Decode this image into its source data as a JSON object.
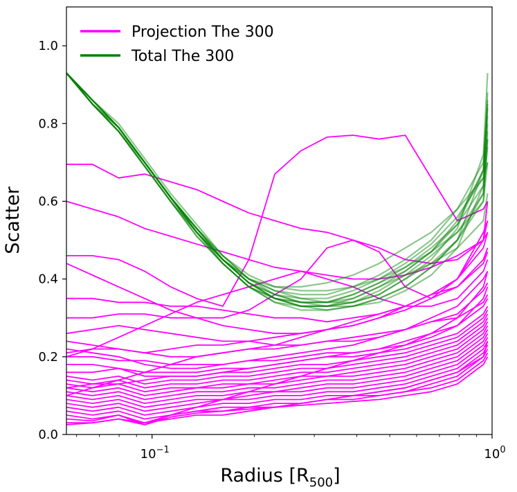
{
  "chart_data": {
    "type": "line",
    "xscale": "log",
    "xlim": [
      0.056,
      1.0
    ],
    "ylim": [
      0.0,
      1.1
    ],
    "xlabel": "Radius [R",
    "xlabel_sub": "500",
    "xlabel_close": "]",
    "ylabel": "Scatter",
    "x_ticks": [
      {
        "value": 0.1,
        "base": "10",
        "exp": "−1"
      },
      {
        "value": 1.0,
        "base": "10",
        "exp": "0"
      }
    ],
    "y_ticks": [
      {
        "value": 0.0,
        "label": "0.0"
      },
      {
        "value": 0.2,
        "label": "0.2"
      },
      {
        "value": 0.4,
        "label": "0.4"
      },
      {
        "value": 0.6,
        "label": "0.6"
      },
      {
        "value": 0.8,
        "label": "0.8"
      },
      {
        "value": 1.0,
        "label": "1.0"
      }
    ],
    "legend": {
      "position": "top-left",
      "entries": [
        {
          "label": "Projection The 300",
          "color": "#ff00ff"
        },
        {
          "label": "Total The 300",
          "color": "#008000"
        }
      ]
    },
    "colors": {
      "projection": "#ff00ff",
      "total": "#008000"
    },
    "x": [
      0.056,
      0.0668,
      0.0797,
      0.0951,
      0.1134,
      0.1353,
      0.1614,
      0.1926,
      0.2297,
      0.2741,
      0.327,
      0.3901,
      0.4654,
      0.5552,
      0.6623,
      0.7902,
      0.9427,
      0.97
    ],
    "projection_series": [
      {
        "name": "projection-1",
        "values": [
          0.695,
          0.695,
          0.66,
          0.67,
          0.65,
          0.63,
          0.6,
          0.57,
          0.55,
          0.53,
          0.52,
          0.5,
          0.48,
          0.45,
          0.44,
          0.45,
          0.5,
          0.55
        ]
      },
      {
        "name": "projection-2",
        "values": [
          0.6,
          0.58,
          0.56,
          0.53,
          0.51,
          0.49,
          0.47,
          0.45,
          0.43,
          0.42,
          0.41,
          0.4,
          0.4,
          0.41,
          0.43,
          0.46,
          0.5,
          0.6
        ]
      },
      {
        "name": "projection-3",
        "values": [
          0.46,
          0.46,
          0.45,
          0.42,
          0.38,
          0.35,
          0.33,
          0.45,
          0.67,
          0.73,
          0.765,
          0.77,
          0.76,
          0.77,
          0.66,
          0.55,
          0.58,
          0.6
        ]
      },
      {
        "name": "projection-4",
        "values": [
          0.44,
          0.41,
          0.38,
          0.35,
          0.32,
          0.3,
          0.28,
          0.27,
          0.26,
          0.26,
          0.27,
          0.28,
          0.3,
          0.33,
          0.36,
          0.38,
          0.45,
          0.48
        ]
      },
      {
        "name": "projection-5",
        "values": [
          0.35,
          0.35,
          0.34,
          0.34,
          0.33,
          0.33,
          0.32,
          0.31,
          0.3,
          0.3,
          0.29,
          0.3,
          0.31,
          0.33,
          0.36,
          0.4,
          0.5,
          0.52
        ]
      },
      {
        "name": "projection-6",
        "values": [
          0.3,
          0.3,
          0.31,
          0.31,
          0.3,
          0.3,
          0.3,
          0.32,
          0.36,
          0.4,
          0.48,
          0.5,
          0.47,
          0.38,
          0.35,
          0.4,
          0.52,
          0.55
        ]
      },
      {
        "name": "projection-7",
        "values": [
          0.2,
          0.22,
          0.25,
          0.28,
          0.31,
          0.34,
          0.36,
          0.38,
          0.4,
          0.42,
          0.4,
          0.38,
          0.35,
          0.33,
          0.33,
          0.35,
          0.42,
          0.45
        ]
      },
      {
        "name": "projection-8",
        "values": [
          0.26,
          0.27,
          0.28,
          0.27,
          0.26,
          0.25,
          0.24,
          0.24,
          0.23,
          0.23,
          0.24,
          0.24,
          0.25,
          0.27,
          0.3,
          0.33,
          0.4,
          0.42
        ]
      },
      {
        "name": "projection-9",
        "values": [
          0.24,
          0.23,
          0.22,
          0.21,
          0.2,
          0.2,
          0.21,
          0.22,
          0.22,
          0.23,
          0.24,
          0.25,
          0.26,
          0.27,
          0.29,
          0.3,
          0.34,
          0.36
        ]
      },
      {
        "name": "projection-10",
        "values": [
          0.22,
          0.21,
          0.2,
          0.18,
          0.17,
          0.17,
          0.18,
          0.19,
          0.2,
          0.21,
          0.22,
          0.23,
          0.25,
          0.27,
          0.29,
          0.31,
          0.37,
          0.39
        ]
      },
      {
        "name": "projection-11",
        "values": [
          0.2,
          0.2,
          0.19,
          0.19,
          0.18,
          0.18,
          0.18,
          0.19,
          0.19,
          0.2,
          0.21,
          0.21,
          0.22,
          0.23,
          0.25,
          0.28,
          0.33,
          0.35
        ]
      },
      {
        "name": "projection-12",
        "values": [
          0.18,
          0.18,
          0.17,
          0.16,
          0.16,
          0.16,
          0.17,
          0.17,
          0.18,
          0.19,
          0.2,
          0.2,
          0.21,
          0.22,
          0.24,
          0.26,
          0.31,
          0.33
        ]
      },
      {
        "name": "projection-13",
        "values": [
          0.16,
          0.16,
          0.17,
          0.15,
          0.15,
          0.15,
          0.16,
          0.16,
          0.17,
          0.18,
          0.18,
          0.19,
          0.2,
          0.21,
          0.23,
          0.25,
          0.3,
          0.32
        ]
      },
      {
        "name": "projection-14",
        "values": [
          0.15,
          0.14,
          0.15,
          0.13,
          0.14,
          0.14,
          0.15,
          0.15,
          0.16,
          0.17,
          0.17,
          0.18,
          0.19,
          0.2,
          0.22,
          0.24,
          0.29,
          0.31
        ]
      },
      {
        "name": "projection-15",
        "values": [
          0.14,
          0.13,
          0.14,
          0.12,
          0.13,
          0.13,
          0.14,
          0.14,
          0.15,
          0.16,
          0.16,
          0.17,
          0.18,
          0.19,
          0.21,
          0.23,
          0.28,
          0.3
        ]
      },
      {
        "name": "projection-16",
        "values": [
          0.13,
          0.12,
          0.13,
          0.11,
          0.12,
          0.12,
          0.13,
          0.13,
          0.14,
          0.15,
          0.15,
          0.16,
          0.17,
          0.18,
          0.2,
          0.22,
          0.27,
          0.29
        ]
      },
      {
        "name": "projection-17",
        "values": [
          0.12,
          0.11,
          0.12,
          0.1,
          0.11,
          0.12,
          0.12,
          0.13,
          0.13,
          0.14,
          0.15,
          0.15,
          0.16,
          0.17,
          0.19,
          0.21,
          0.26,
          0.28
        ]
      },
      {
        "name": "projection-18",
        "values": [
          0.11,
          0.1,
          0.11,
          0.09,
          0.1,
          0.11,
          0.11,
          0.12,
          0.12,
          0.13,
          0.14,
          0.14,
          0.15,
          0.16,
          0.18,
          0.2,
          0.25,
          0.27
        ]
      },
      {
        "name": "projection-19",
        "values": [
          0.1,
          0.09,
          0.1,
          0.08,
          0.09,
          0.1,
          0.1,
          0.11,
          0.11,
          0.12,
          0.13,
          0.13,
          0.14,
          0.15,
          0.17,
          0.19,
          0.24,
          0.26
        ]
      },
      {
        "name": "projection-20",
        "values": [
          0.09,
          0.08,
          0.09,
          0.07,
          0.08,
          0.09,
          0.09,
          0.1,
          0.11,
          0.11,
          0.12,
          0.12,
          0.13,
          0.14,
          0.16,
          0.18,
          0.23,
          0.25
        ]
      },
      {
        "name": "projection-21",
        "values": [
          0.08,
          0.07,
          0.08,
          0.06,
          0.07,
          0.08,
          0.09,
          0.09,
          0.1,
          0.1,
          0.11,
          0.11,
          0.12,
          0.13,
          0.15,
          0.17,
          0.22,
          0.24
        ]
      },
      {
        "name": "projection-22",
        "values": [
          0.07,
          0.06,
          0.07,
          0.05,
          0.06,
          0.07,
          0.08,
          0.08,
          0.09,
          0.09,
          0.1,
          0.1,
          0.11,
          0.12,
          0.14,
          0.16,
          0.21,
          0.23
        ]
      },
      {
        "name": "projection-23",
        "values": [
          0.06,
          0.05,
          0.06,
          0.04,
          0.05,
          0.06,
          0.07,
          0.07,
          0.08,
          0.08,
          0.09,
          0.1,
          0.1,
          0.11,
          0.13,
          0.15,
          0.2,
          0.22
        ]
      },
      {
        "name": "projection-24",
        "values": [
          0.05,
          0.04,
          0.05,
          0.03,
          0.05,
          0.06,
          0.06,
          0.07,
          0.07,
          0.08,
          0.09,
          0.09,
          0.1,
          0.11,
          0.12,
          0.14,
          0.19,
          0.21
        ]
      },
      {
        "name": "projection-25",
        "values": [
          0.04,
          0.035,
          0.05,
          0.025,
          0.045,
          0.055,
          0.06,
          0.065,
          0.07,
          0.075,
          0.08,
          0.085,
          0.09,
          0.1,
          0.11,
          0.13,
          0.18,
          0.2
        ]
      },
      {
        "name": "projection-26",
        "values": [
          0.03,
          0.03,
          0.04,
          0.03,
          0.04,
          0.05,
          0.05,
          0.06,
          0.07,
          0.08,
          0.09,
          0.1,
          0.11,
          0.12,
          0.14,
          0.16,
          0.2,
          0.24
        ]
      },
      {
        "name": "projection-27",
        "values": [
          0.025,
          0.03,
          0.04,
          0.025,
          0.05,
          0.07,
          0.09,
          0.11,
          0.13,
          0.15,
          0.17,
          0.19,
          0.21,
          0.23,
          0.26,
          0.3,
          0.38,
          0.42
        ]
      },
      {
        "name": "projection-28",
        "values": [
          0.1,
          0.12,
          0.14,
          0.16,
          0.18,
          0.2,
          0.21,
          0.22,
          0.23,
          0.25,
          0.27,
          0.29,
          0.31,
          0.33,
          0.36,
          0.4,
          0.48,
          0.52
        ]
      },
      {
        "name": "projection-29",
        "values": [
          0.21,
          0.22,
          0.22,
          0.21,
          0.22,
          0.23,
          0.23,
          0.24,
          0.25,
          0.26,
          0.27,
          0.28,
          0.3,
          0.32,
          0.35,
          0.38,
          0.44,
          0.47
        ]
      },
      {
        "name": "projection-30",
        "values": [
          0.12,
          0.13,
          0.13,
          0.14,
          0.15,
          0.15,
          0.16,
          0.17,
          0.18,
          0.19,
          0.2,
          0.21,
          0.22,
          0.24,
          0.26,
          0.28,
          0.35,
          0.38
        ]
      }
    ],
    "total_series": [
      {
        "name": "total-1",
        "values": [
          0.93,
          0.86,
          0.8,
          0.71,
          0.62,
          0.54,
          0.46,
          0.4,
          0.37,
          0.35,
          0.34,
          0.34,
          0.36,
          0.4,
          0.45,
          0.53,
          0.72,
          0.93
        ]
      },
      {
        "name": "total-2",
        "values": [
          0.93,
          0.86,
          0.79,
          0.7,
          0.61,
          0.53,
          0.45,
          0.39,
          0.36,
          0.34,
          0.33,
          0.33,
          0.35,
          0.38,
          0.43,
          0.5,
          0.68,
          0.88
        ]
      },
      {
        "name": "total-3",
        "values": [
          0.93,
          0.85,
          0.79,
          0.7,
          0.61,
          0.52,
          0.45,
          0.39,
          0.35,
          0.33,
          0.32,
          0.33,
          0.34,
          0.37,
          0.41,
          0.48,
          0.64,
          0.85
        ]
      },
      {
        "name": "total-4",
        "values": [
          0.93,
          0.85,
          0.78,
          0.69,
          0.6,
          0.52,
          0.44,
          0.38,
          0.35,
          0.33,
          0.33,
          0.34,
          0.36,
          0.4,
          0.44,
          0.5,
          0.62,
          0.8
        ]
      },
      {
        "name": "total-5",
        "values": [
          0.93,
          0.85,
          0.78,
          0.69,
          0.6,
          0.51,
          0.44,
          0.38,
          0.35,
          0.34,
          0.34,
          0.35,
          0.38,
          0.42,
          0.47,
          0.52,
          0.6,
          0.76
        ]
      },
      {
        "name": "total-6",
        "values": [
          0.93,
          0.86,
          0.79,
          0.7,
          0.61,
          0.53,
          0.46,
          0.41,
          0.38,
          0.37,
          0.37,
          0.38,
          0.4,
          0.43,
          0.47,
          0.55,
          0.68,
          0.82
        ]
      },
      {
        "name": "total-7",
        "values": [
          0.93,
          0.86,
          0.79,
          0.7,
          0.61,
          0.53,
          0.46,
          0.4,
          0.37,
          0.36,
          0.36,
          0.38,
          0.41,
          0.45,
          0.5,
          0.58,
          0.7,
          0.86
        ]
      },
      {
        "name": "total-8",
        "values": [
          0.93,
          0.85,
          0.78,
          0.69,
          0.6,
          0.52,
          0.45,
          0.4,
          0.38,
          0.38,
          0.39,
          0.41,
          0.44,
          0.48,
          0.52,
          0.58,
          0.66,
          0.7
        ]
      },
      {
        "name": "total-9",
        "values": [
          0.93,
          0.85,
          0.78,
          0.69,
          0.6,
          0.51,
          0.44,
          0.38,
          0.34,
          0.33,
          0.33,
          0.35,
          0.38,
          0.41,
          0.44,
          0.48,
          0.55,
          0.62
        ]
      },
      {
        "name": "total-10",
        "values": [
          0.93,
          0.86,
          0.79,
          0.7,
          0.61,
          0.53,
          0.45,
          0.39,
          0.35,
          0.33,
          0.33,
          0.34,
          0.37,
          0.41,
          0.46,
          0.52,
          0.62,
          0.74
        ]
      },
      {
        "name": "total-11",
        "values": [
          0.93,
          0.86,
          0.79,
          0.7,
          0.61,
          0.52,
          0.45,
          0.39,
          0.35,
          0.34,
          0.34,
          0.36,
          0.39,
          0.43,
          0.48,
          0.54,
          0.64,
          0.78
        ]
      },
      {
        "name": "total-12",
        "values": [
          0.93,
          0.85,
          0.78,
          0.7,
          0.61,
          0.52,
          0.44,
          0.38,
          0.34,
          0.32,
          0.32,
          0.33,
          0.35,
          0.38,
          0.43,
          0.5,
          0.6,
          0.7
        ]
      },
      {
        "name": "total-13",
        "values": [
          0.93,
          0.86,
          0.79,
          0.7,
          0.61,
          0.53,
          0.45,
          0.4,
          0.36,
          0.35,
          0.35,
          0.37,
          0.4,
          0.44,
          0.49,
          0.56,
          0.66,
          0.76
        ]
      },
      {
        "name": "total-14",
        "values": [
          0.93,
          0.85,
          0.79,
          0.7,
          0.61,
          0.52,
          0.45,
          0.39,
          0.36,
          0.34,
          0.34,
          0.36,
          0.39,
          0.42,
          0.47,
          0.54,
          0.68,
          0.84
        ]
      }
    ]
  }
}
